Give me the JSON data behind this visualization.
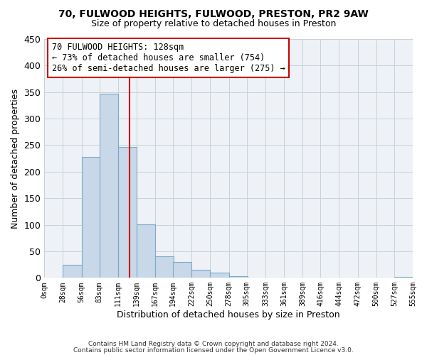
{
  "title_line1": "70, FULWOOD HEIGHTS, FULWOOD, PRESTON, PR2 9AW",
  "title_line2": "Size of property relative to detached houses in Preston",
  "xlabel": "Distribution of detached houses by size in Preston",
  "ylabel": "Number of detached properties",
  "bar_left_edges": [
    0,
    28,
    56,
    83,
    111,
    139,
    167,
    194,
    222,
    250,
    278,
    305,
    333,
    361,
    389,
    416,
    444,
    472,
    500,
    527
  ],
  "bar_heights": [
    0,
    25,
    228,
    347,
    247,
    101,
    41,
    30,
    15,
    10,
    3,
    0,
    0,
    0,
    0,
    0,
    0,
    0,
    0,
    2
  ],
  "bin_width": 28,
  "bar_color": "#c8d8e8",
  "bar_edge_color": "#7baac8",
  "property_size": 128,
  "vline_color": "#cc0000",
  "annotation_title": "70 FULWOOD HEIGHTS: 128sqm",
  "annotation_line2": "← 73% of detached houses are smaller (754)",
  "annotation_line3": "26% of semi-detached houses are larger (275) →",
  "annotation_box_edgecolor": "#cc0000",
  "ylim": [
    0,
    450
  ],
  "xtick_labels": [
    "0sqm",
    "28sqm",
    "56sqm",
    "83sqm",
    "111sqm",
    "139sqm",
    "167sqm",
    "194sqm",
    "222sqm",
    "250sqm",
    "278sqm",
    "305sqm",
    "333sqm",
    "361sqm",
    "389sqm",
    "416sqm",
    "444sqm",
    "472sqm",
    "500sqm",
    "527sqm",
    "555sqm"
  ],
  "xtick_positions": [
    0,
    28,
    56,
    83,
    111,
    139,
    167,
    194,
    222,
    250,
    278,
    305,
    333,
    361,
    389,
    416,
    444,
    472,
    500,
    527,
    555
  ],
  "footer_line1": "Contains HM Land Registry data © Crown copyright and database right 2024.",
  "footer_line2": "Contains public sector information licensed under the Open Government Licence v3.0.",
  "grid_color": "#c8d0d8",
  "background_color": "#eef2f6",
  "ytick_values": [
    0,
    50,
    100,
    150,
    200,
    250,
    300,
    350,
    400,
    450
  ]
}
